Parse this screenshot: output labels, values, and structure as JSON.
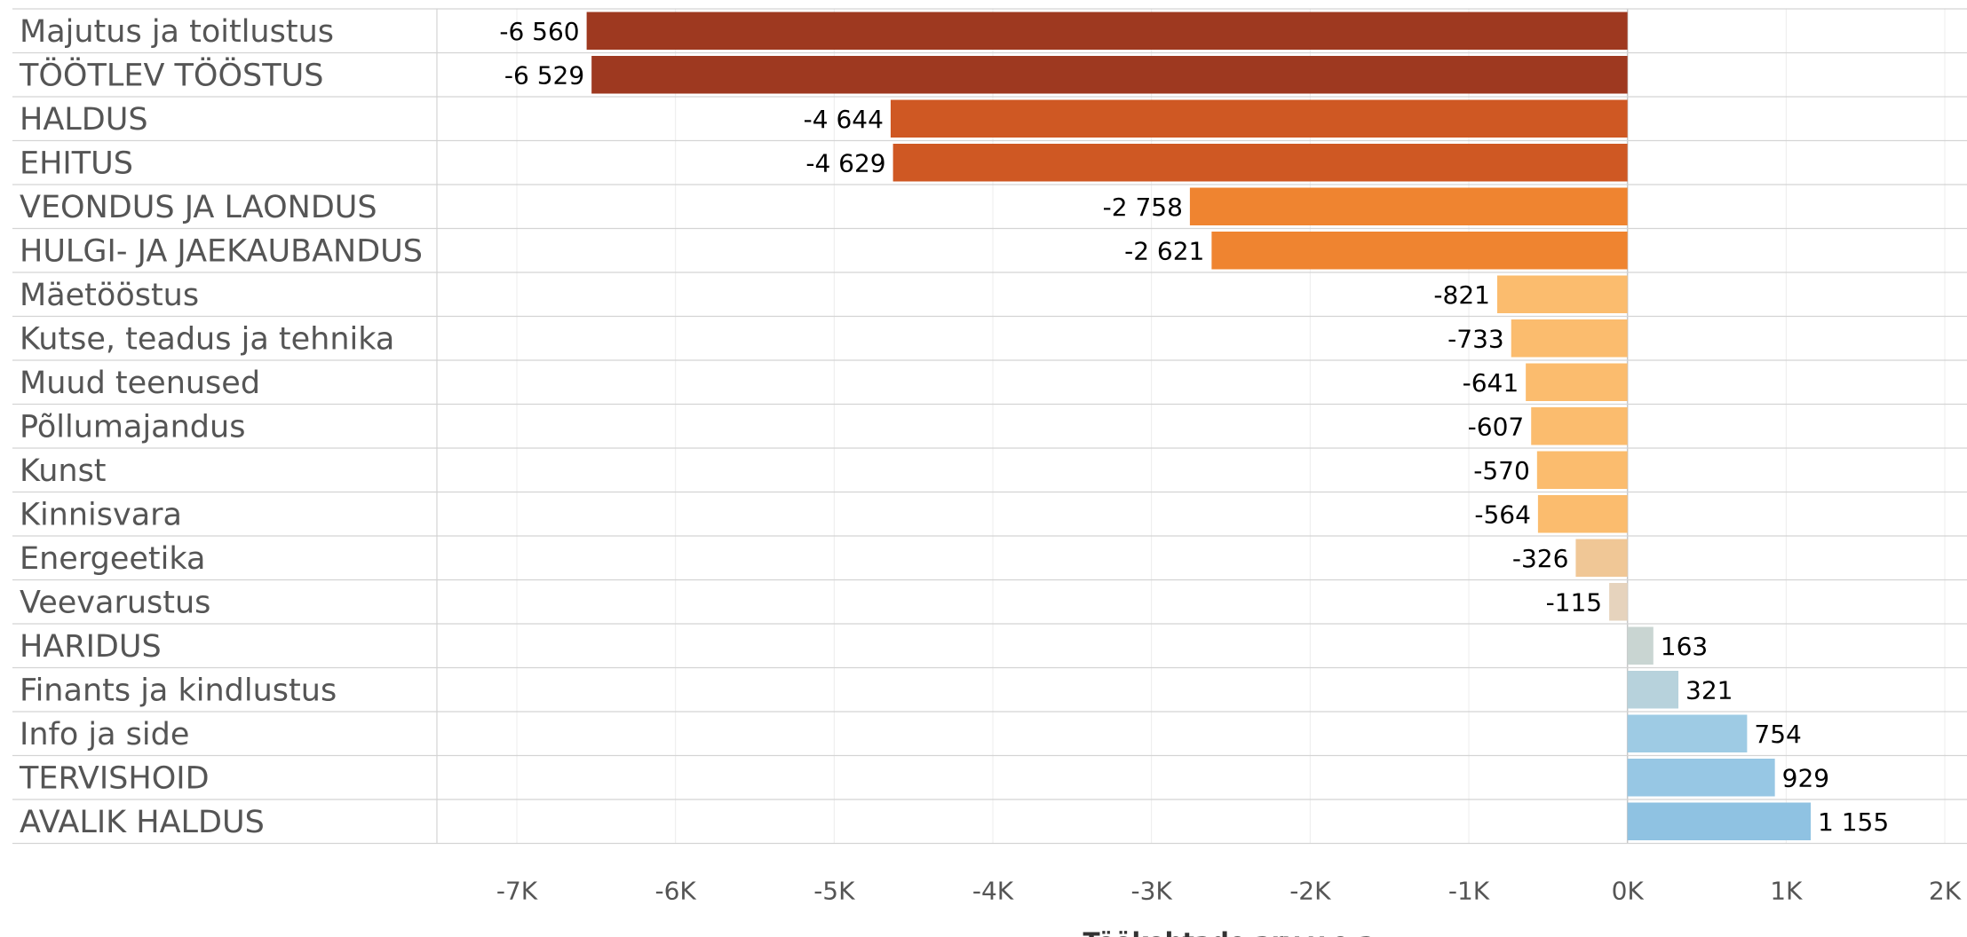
{
  "chart_data": {
    "type": "bar",
    "orientation": "horizontal",
    "categories": [
      "Majutus ja toitlustus",
      "TÖÖTLEV TÖÖSTUS",
      "HALDUS",
      "EHITUS",
      "VEONDUS JA LAONDUS",
      "HULGI- JA JAEKAUBANDUS",
      "Mäetööstus",
      "Kutse, teadus ja tehnika",
      "Muud teenused",
      "Põllumajandus",
      "Kunst",
      "Kinnisvara",
      "Energeetika",
      "Veevarustus",
      "HARIDUS",
      "Finants ja kindlustus",
      "Info ja side",
      "TERVISHOID",
      "AVALIK HALDUS"
    ],
    "values": [
      -6560,
      -6529,
      -4644,
      -4629,
      -2758,
      -2621,
      -821,
      -733,
      -641,
      -607,
      -570,
      -564,
      -326,
      -115,
      163,
      321,
      754,
      929,
      1155
    ],
    "value_labels": [
      "-6 560",
      "-6 529",
      "-4 644",
      "-4 629",
      "-2 758",
      "-2 621",
      "-821",
      "-733",
      "-641",
      "-607",
      "-570",
      "-564",
      "-326",
      "-115",
      "163",
      "321",
      "754",
      "929",
      "1 155"
    ],
    "colors": [
      "#9e3920",
      "#9e3920",
      "#cf5823",
      "#cf5823",
      "#ef8430",
      "#ef8430",
      "#fbbc6e",
      "#fbbc6e",
      "#fbbc6e",
      "#fbbc6e",
      "#fbbc6e",
      "#fbbc6e",
      "#f0c796",
      "#e6d3bd",
      "#c9d5d2",
      "#b7d2dc",
      "#9ecbe4",
      "#97c7e4",
      "#8fc2e2"
    ],
    "xlim": [
      -7000,
      2000
    ],
    "xticks": [
      -7000,
      -6000,
      -5000,
      -4000,
      -3000,
      -2000,
      -1000,
      0,
      1000,
      2000
    ],
    "xtick_labels": [
      "-7K",
      "-6K",
      "-5K",
      "-4K",
      "-3K",
      "-2K",
      "-1K",
      "0K",
      "1K",
      "2K"
    ],
    "xlabel": "Töökohtade arv v.e.a",
    "ylabel": "",
    "title": "",
    "grid": true,
    "legend": "none"
  }
}
